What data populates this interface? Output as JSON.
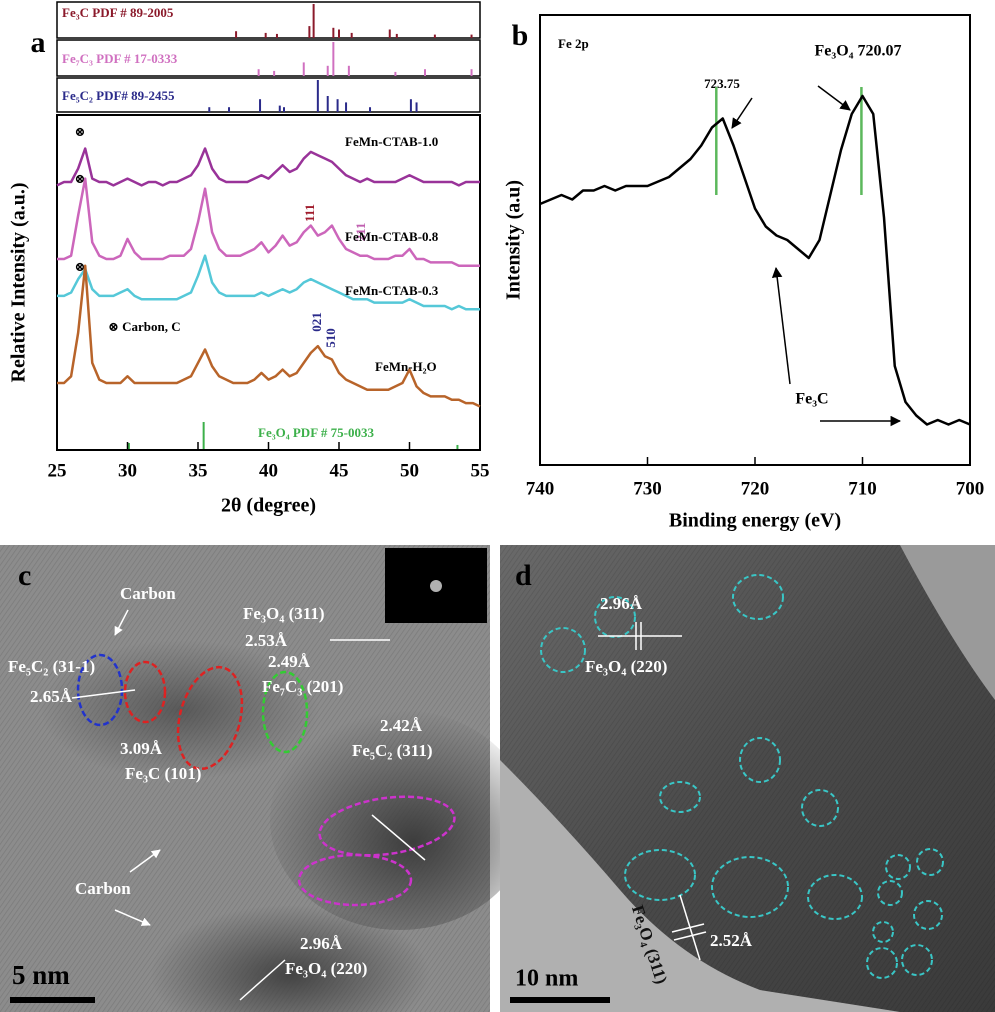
{
  "chart_data": [
    {
      "type": "line",
      "panel": "a",
      "xlabel": "2θ (degree)",
      "ylabel": "Relative Intensity (a.u.)",
      "xlim": [
        25,
        55
      ],
      "xticks": [
        25,
        30,
        35,
        40,
        45,
        50,
        55
      ],
      "ylim": [
        0,
        100
      ],
      "x": [
        25,
        25.5,
        26,
        26.5,
        27,
        27.5,
        28,
        28.5,
        29,
        29.5,
        30,
        30.5,
        31,
        31.5,
        32,
        32.5,
        33,
        33.5,
        34,
        34.5,
        35,
        35.5,
        36,
        36.5,
        37,
        37.5,
        38,
        38.5,
        39,
        39.5,
        40,
        40.5,
        41,
        41.5,
        42,
        42.5,
        43,
        43.5,
        44,
        44.5,
        45,
        45.5,
        46,
        46.5,
        47,
        47.5,
        48,
        48.5,
        49,
        49.5,
        50,
        50.5,
        51,
        51.5,
        52,
        52.5,
        53,
        53.5,
        54,
        54.5,
        55
      ],
      "series": [
        {
          "name": "FeMn-CTAB-1.0",
          "color": "#993399",
          "values": [
            79,
            80,
            80,
            84,
            90,
            81,
            80,
            80,
            79,
            80,
            81,
            80,
            79,
            80,
            80,
            79,
            80,
            80,
            81,
            82,
            85,
            90,
            84,
            81,
            80,
            80,
            80,
            80,
            81,
            82,
            81,
            83,
            85,
            83,
            84,
            87,
            89,
            88,
            87,
            86,
            84,
            82,
            81,
            80,
            81,
            80,
            80,
            80,
            80,
            81,
            82,
            81,
            80,
            80,
            80,
            80,
            80,
            79,
            80,
            80,
            80
          ]
        },
        {
          "name": "FeMn-CTAB-0.8",
          "color": "#cc66bb",
          "values": [
            57,
            57,
            58,
            70,
            81,
            62,
            58,
            57,
            57,
            58,
            63,
            59,
            57,
            57,
            57,
            57,
            58,
            58,
            58,
            60,
            68,
            78,
            65,
            60,
            58,
            58,
            58,
            59,
            60,
            62,
            59,
            61,
            64,
            61,
            62,
            65,
            67,
            64,
            65,
            67,
            63,
            60,
            59,
            58,
            58,
            57,
            57,
            57,
            58,
            58,
            60,
            57,
            57,
            56,
            56,
            56,
            56,
            55,
            55,
            55,
            55
          ]
        },
        {
          "name": "FeMn-CTAB-0.3",
          "color": "#55c8d8",
          "values": [
            46,
            46,
            47,
            51,
            54,
            48,
            46,
            46,
            46,
            47,
            48,
            46,
            45,
            45,
            45,
            45,
            45,
            45,
            46,
            47,
            52,
            58,
            50,
            47,
            46,
            46,
            46,
            46,
            46,
            47,
            46,
            47,
            48,
            47,
            48,
            50,
            51,
            50,
            49,
            48,
            47,
            46,
            45,
            45,
            45,
            44,
            44,
            44,
            44,
            44,
            45,
            44,
            43,
            43,
            43,
            43,
            42,
            43,
            42,
            42,
            42
          ]
        },
        {
          "name": "FeMn-H₂O",
          "color": "#b8642a",
          "values": [
            20,
            20,
            22,
            35,
            55,
            26,
            21,
            20,
            20,
            20,
            22,
            20,
            20,
            20,
            20,
            20,
            20,
            20,
            21,
            22,
            26,
            30,
            25,
            22,
            21,
            20,
            20,
            20,
            21,
            23,
            21,
            22,
            24,
            22,
            23,
            26,
            29,
            31,
            28,
            27,
            23,
            21,
            20,
            19,
            18,
            18,
            18,
            18,
            19,
            20,
            24,
            19,
            17,
            16,
            16,
            16,
            15,
            15,
            14,
            14,
            13
          ]
        }
      ],
      "references": [
        {
          "name": "Fe₃C PDF # 89-2005",
          "color": "#8b1a2b",
          "positions": [
            37.7,
            39.8,
            40.6,
            42.9,
            43.2,
            44.6,
            45.0,
            45.9,
            48.6,
            49.1,
            51.8,
            54.4
          ],
          "intensities": [
            20,
            15,
            12,
            35,
            100,
            30,
            25,
            15,
            25,
            12,
            10,
            10
          ]
        },
        {
          "name": "Fe₇C₃ PDF # 17-0333",
          "color": "#d070c0",
          "positions": [
            39.3,
            40.4,
            42.5,
            44.2,
            44.6,
            45.7,
            49.0,
            51.1,
            54.4
          ],
          "intensities": [
            20,
            15,
            40,
            30,
            100,
            30,
            12,
            20,
            20
          ]
        },
        {
          "name": "Fe₅C₂ PDF# 89-2455",
          "color": "#2a2a8a",
          "positions": [
            35.8,
            37.2,
            39.4,
            40.8,
            41.1,
            43.5,
            44.2,
            44.9,
            45.5,
            47.2,
            50.1,
            50.5
          ],
          "intensities": [
            15,
            15,
            40,
            20,
            15,
            100,
            50,
            40,
            30,
            15,
            40,
            30
          ]
        },
        {
          "name": "Fe₃O₄ PDF # 75-0033",
          "color": "#3cb04a",
          "positions": [
            30.1,
            35.4,
            53.4
          ],
          "intensities": [
            25,
            100,
            18
          ]
        }
      ],
      "annotations": [
        "⊗ Carbon, C",
        "⊗",
        "111",
        "211",
        "021",
        "510"
      ]
    },
    {
      "type": "line",
      "panel": "b",
      "title": "Fe 2p",
      "xlabel": "Binding energy (eV)",
      "ylabel": "Intensity (a.u)",
      "xlim": [
        740,
        700
      ],
      "xticks": [
        740,
        730,
        720,
        710,
        700
      ],
      "ylim": [
        0,
        100
      ],
      "color": "#000000",
      "x": [
        740,
        739,
        738,
        737,
        736,
        735,
        734,
        733,
        732,
        731,
        730,
        729,
        728,
        727,
        726,
        725,
        724,
        723,
        722,
        721,
        720,
        719,
        718,
        717,
        716,
        715,
        714,
        713,
        712,
        711,
        710,
        709,
        708,
        707,
        706,
        705,
        704,
        703,
        702,
        701,
        700
      ],
      "values": [
        58,
        59,
        60,
        59,
        61,
        61,
        62,
        61,
        62,
        62,
        62,
        63,
        64,
        66,
        68,
        71,
        75,
        77,
        71,
        64,
        57,
        53,
        51,
        50,
        48,
        46,
        50,
        60,
        70,
        78,
        82,
        78,
        55,
        22,
        14,
        11,
        9,
        10,
        9,
        10,
        9
      ],
      "peak_markers": {
        "color": "#5cb85c",
        "x": [
          723.6,
          710.1
        ]
      },
      "annotations": [
        "723.75",
        "Fe₃O₄ 720.07",
        "Fe₃C"
      ]
    }
  ],
  "panel_c": {
    "label": "c",
    "texts": [
      "Carbon",
      "Carbon",
      "Fe₃O₄ (311)",
      "2.53Å",
      "Fe₅C₂ (31-1)",
      "2.65Å",
      "2.49Å",
      "Fe₇C₃ (201)",
      "2.42Å",
      "Fe₅C₂ (311)",
      "3.09Å",
      "Fe₃C (101)",
      "2.96Å",
      "Fe₃O₄ (220)"
    ],
    "scale_bar": "5 nm"
  },
  "panel_d": {
    "label": "d",
    "texts": [
      "2.96Å",
      "Fe₃O₄ (220)",
      "Fe₃O₄ (311)",
      "2.52Å"
    ],
    "scale_bar": "10 nm"
  }
}
